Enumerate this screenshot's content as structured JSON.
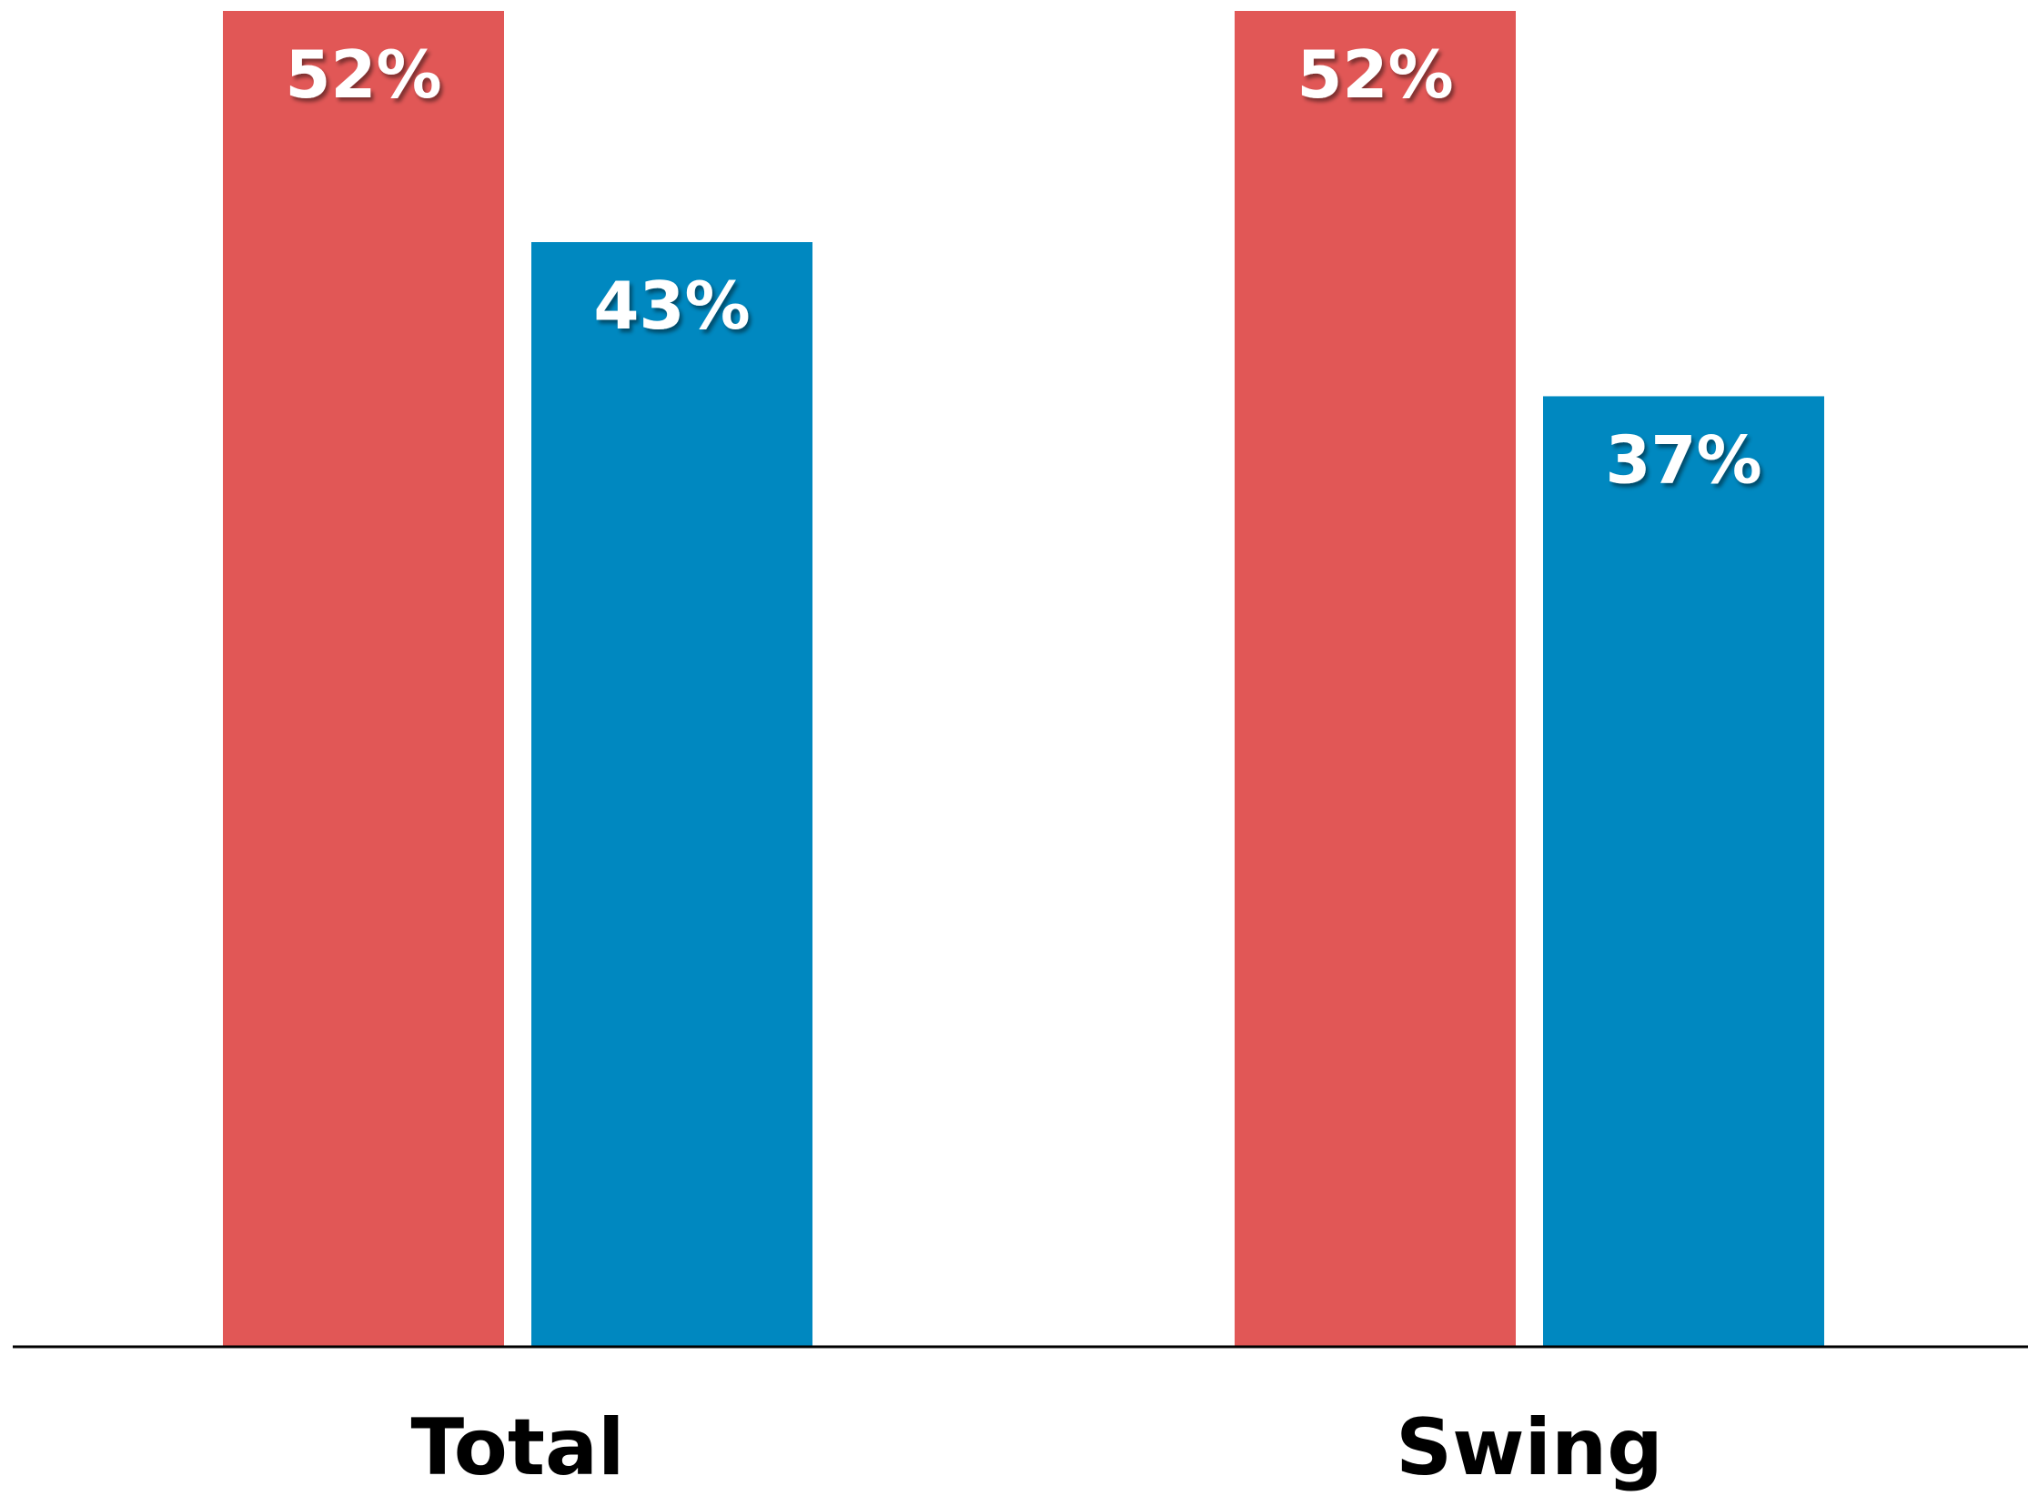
{
  "chart_data": {
    "type": "bar",
    "categories": [
      "Total",
      "Swing"
    ],
    "series": [
      {
        "values": [
          52,
          52
        ],
        "color": "#e15756",
        "labels": [
          "52%",
          "52%"
        ]
      },
      {
        "values": [
          43,
          37
        ],
        "color": "#0088c0",
        "labels": [
          "43%",
          "37%"
        ]
      }
    ],
    "ylim": [
      0,
      52
    ],
    "grid": false,
    "legend": "none",
    "title": "",
    "xlabel": "",
    "ylabel": ""
  }
}
